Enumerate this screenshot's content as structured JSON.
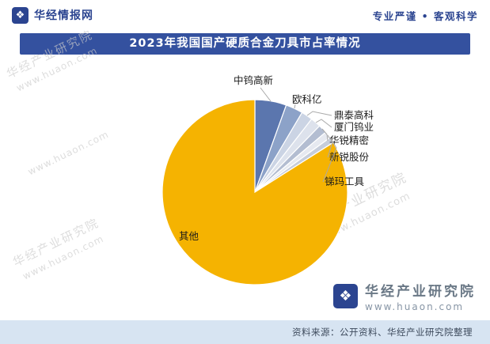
{
  "header": {
    "brand": "华经情报网",
    "slogan": "专业严谨 • 客观科学"
  },
  "chart_data": {
    "type": "pie",
    "title": "2023年我国国产硬质合金刀具市占率情况",
    "unit": "%",
    "start_angle": "12-oclock",
    "direction": "clockwise",
    "legend": "none",
    "label_style": "outside-leader-lines",
    "series": [
      {
        "name": "中钨高新",
        "value": 5.5
      },
      {
        "name": "欧科亿",
        "value": 3.0
      },
      {
        "name": "鼎泰高科",
        "value": 2.0
      },
      {
        "name": "厦门钨业",
        "value": 1.8
      },
      {
        "name": "华锐精密",
        "value": 1.5
      },
      {
        "name": "新锐股份",
        "value": 1.2
      },
      {
        "name": "锑玛工具",
        "value": 1.0
      },
      {
        "name": "其他",
        "value": 84.0
      }
    ],
    "colors": [
      "#5B76AE",
      "#8CA2C8",
      "#CBD4E4",
      "#DDE2EC",
      "#B3BDD1",
      "#E6E9F0",
      "#C6CDDB",
      "#F5B301"
    ]
  },
  "watermark": {
    "line1": "华经产业研究院",
    "line2": "www.huaon.com"
  },
  "credit": {
    "name": "华经产业研究院",
    "url": "www.huaon.com"
  },
  "footer": {
    "source": "资料来源：公开资料、华经产业研究院整理"
  },
  "icons": {
    "brand_logo": "❖",
    "credit_logo": "❖"
  },
  "colors": {
    "brand_navy": "#2B4490",
    "title_bar": "#34519F",
    "pie_other_yellow": "#F5B301",
    "footer_bg": "#D7E4F2"
  }
}
